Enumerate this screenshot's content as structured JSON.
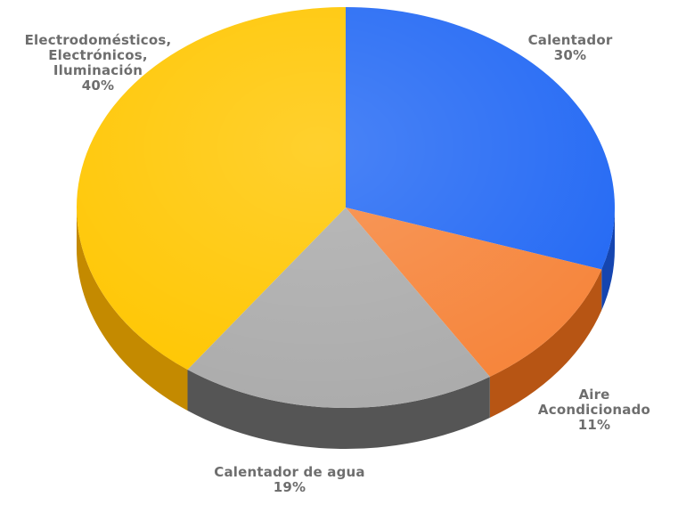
{
  "chart_data": {
    "type": "pie",
    "title": "",
    "style": "3d",
    "legend": "none",
    "slices": [
      {
        "label_lines": [
          "Calentador"
        ],
        "value_label": "30%",
        "value": 30,
        "color": "#2268f4",
        "side_color": "#1545b0"
      },
      {
        "label_lines": [
          "Aire",
          "Acondicionado"
        ],
        "value_label": "11%",
        "value": 11,
        "color": "#f6843a",
        "side_color": "#b75514"
      },
      {
        "label_lines": [
          "Calentador de agua"
        ],
        "value_label": "19%",
        "value": 19,
        "color": "#ababab",
        "side_color": "#555555"
      },
      {
        "label_lines": [
          "Electrodomésticos,",
          "Electrónicos,",
          "Iluminación"
        ],
        "value_label": "40%",
        "value": 40,
        "color": "#ffc600",
        "side_color": "#c48a00"
      }
    ]
  }
}
